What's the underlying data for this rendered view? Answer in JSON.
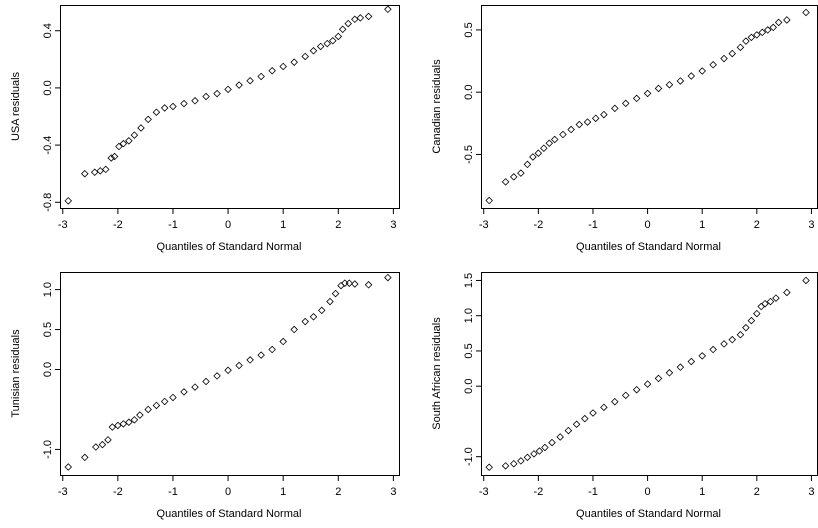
{
  "chart_data": [
    {
      "type": "scatter",
      "xlabel": "Quantiles of Standard Normal",
      "ylabel": "USA residuals",
      "xlim": [
        -3.05,
        3.12
      ],
      "ylim": [
        -0.84,
        0.58
      ],
      "xticks": [
        -3,
        -2,
        -1,
        0,
        1,
        2,
        3
      ],
      "yticks": [
        -0.8,
        -0.4,
        0.0,
        0.4
      ],
      "ytick_labels": [
        "-0.8",
        "-0.4",
        "0.0",
        "0.4"
      ],
      "grid": false,
      "points": {
        "x": [
          -2.9,
          -2.6,
          -2.42,
          -2.32,
          -2.22,
          -2.12,
          -2.06,
          -1.98,
          -1.9,
          -1.8,
          -1.7,
          -1.58,
          -1.45,
          -1.3,
          -1.15,
          -1.0,
          -0.8,
          -0.6,
          -0.4,
          -0.2,
          0.0,
          0.2,
          0.4,
          0.6,
          0.8,
          1.0,
          1.2,
          1.4,
          1.55,
          1.68,
          1.8,
          1.9,
          2.0,
          2.08,
          2.18,
          2.3,
          2.4,
          2.55,
          2.9
        ],
        "y": [
          -0.79,
          -0.6,
          -0.59,
          -0.58,
          -0.57,
          -0.49,
          -0.48,
          -0.41,
          -0.39,
          -0.37,
          -0.33,
          -0.28,
          -0.22,
          -0.17,
          -0.14,
          -0.13,
          -0.11,
          -0.09,
          -0.06,
          -0.04,
          -0.01,
          0.02,
          0.05,
          0.08,
          0.12,
          0.15,
          0.18,
          0.22,
          0.26,
          0.29,
          0.31,
          0.33,
          0.36,
          0.41,
          0.45,
          0.48,
          0.49,
          0.5,
          0.55
        ]
      }
    },
    {
      "type": "scatter",
      "xlabel": "Quantiles of Standard Normal",
      "ylabel": "Canadian residuals",
      "xlim": [
        -3.05,
        3.12
      ],
      "ylim": [
        -0.93,
        0.7
      ],
      "xticks": [
        -3,
        -2,
        -1,
        0,
        1,
        2,
        3
      ],
      "yticks": [
        -0.5,
        0.0,
        0.5
      ],
      "ytick_labels": [
        "-0.5",
        "0.0",
        "0.5"
      ],
      "grid": false,
      "points": {
        "x": [
          -2.9,
          -2.6,
          -2.45,
          -2.32,
          -2.2,
          -2.1,
          -2.0,
          -1.9,
          -1.8,
          -1.7,
          -1.55,
          -1.4,
          -1.25,
          -1.1,
          -0.95,
          -0.8,
          -0.6,
          -0.4,
          -0.2,
          0.0,
          0.2,
          0.4,
          0.6,
          0.8,
          1.0,
          1.2,
          1.4,
          1.55,
          1.7,
          1.8,
          1.9,
          2.0,
          2.1,
          2.2,
          2.3,
          2.4,
          2.55,
          2.9
        ],
        "y": [
          -0.87,
          -0.72,
          -0.68,
          -0.65,
          -0.58,
          -0.52,
          -0.49,
          -0.45,
          -0.41,
          -0.38,
          -0.34,
          -0.3,
          -0.26,
          -0.24,
          -0.21,
          -0.18,
          -0.13,
          -0.09,
          -0.05,
          -0.01,
          0.03,
          0.06,
          0.09,
          0.13,
          0.17,
          0.22,
          0.27,
          0.31,
          0.36,
          0.41,
          0.44,
          0.46,
          0.48,
          0.5,
          0.52,
          0.56,
          0.58,
          0.64
        ]
      }
    },
    {
      "type": "scatter",
      "xlabel": "Quantiles of Standard Normal",
      "ylabel": "Tunisian residuals",
      "xlim": [
        -3.05,
        3.12
      ],
      "ylim": [
        -1.32,
        1.22
      ],
      "xticks": [
        -3,
        -2,
        -1,
        0,
        1,
        2,
        3
      ],
      "yticks": [
        -1.0,
        0.0,
        0.5,
        1.0
      ],
      "ytick_labels": [
        "-1.0",
        "0.0",
        "0.5",
        "1.0"
      ],
      "grid": false,
      "points": {
        "x": [
          -2.9,
          -2.6,
          -2.4,
          -2.28,
          -2.18,
          -2.1,
          -2.0,
          -1.9,
          -1.8,
          -1.7,
          -1.6,
          -1.45,
          -1.3,
          -1.15,
          -1.0,
          -0.8,
          -0.6,
          -0.4,
          -0.2,
          0.0,
          0.2,
          0.4,
          0.6,
          0.8,
          1.0,
          1.2,
          1.4,
          1.55,
          1.7,
          1.85,
          1.95,
          2.05,
          2.12,
          2.2,
          2.3,
          2.55,
          2.9
        ],
        "y": [
          -1.22,
          -1.1,
          -0.97,
          -0.94,
          -0.88,
          -0.72,
          -0.7,
          -0.68,
          -0.66,
          -0.63,
          -0.57,
          -0.5,
          -0.45,
          -0.4,
          -0.35,
          -0.28,
          -0.22,
          -0.15,
          -0.08,
          -0.01,
          0.05,
          0.12,
          0.18,
          0.25,
          0.35,
          0.5,
          0.6,
          0.66,
          0.74,
          0.85,
          0.95,
          1.05,
          1.08,
          1.08,
          1.07,
          1.06,
          1.15
        ]
      }
    },
    {
      "type": "scatter",
      "xlabel": "Quantiles of Standard Normal",
      "ylabel": "South African residuals",
      "xlim": [
        -3.05,
        3.12
      ],
      "ylim": [
        -1.26,
        1.62
      ],
      "xticks": [
        -3,
        -2,
        -1,
        0,
        1,
        2,
        3
      ],
      "yticks": [
        -1.0,
        0.0,
        0.5,
        1.0,
        1.5
      ],
      "ytick_labels": [
        "-1.0",
        "0.0",
        "0.5",
        "1.0",
        "1.5"
      ],
      "grid": false,
      "points": {
        "x": [
          -2.9,
          -2.6,
          -2.45,
          -2.32,
          -2.2,
          -2.08,
          -1.98,
          -1.88,
          -1.75,
          -1.6,
          -1.45,
          -1.3,
          -1.15,
          -1.0,
          -0.8,
          -0.6,
          -0.4,
          -0.2,
          0.0,
          0.2,
          0.4,
          0.6,
          0.8,
          1.0,
          1.2,
          1.4,
          1.55,
          1.7,
          1.8,
          1.9,
          2.0,
          2.08,
          2.15,
          2.25,
          2.35,
          2.55,
          2.9
        ],
        "y": [
          -1.15,
          -1.13,
          -1.1,
          -1.06,
          -1.01,
          -0.96,
          -0.92,
          -0.87,
          -0.8,
          -0.72,
          -0.63,
          -0.54,
          -0.46,
          -0.38,
          -0.3,
          -0.22,
          -0.13,
          -0.05,
          0.03,
          0.11,
          0.19,
          0.27,
          0.35,
          0.43,
          0.52,
          0.6,
          0.66,
          0.73,
          0.83,
          0.93,
          1.03,
          1.13,
          1.17,
          1.2,
          1.25,
          1.33,
          1.5
        ]
      }
    }
  ]
}
